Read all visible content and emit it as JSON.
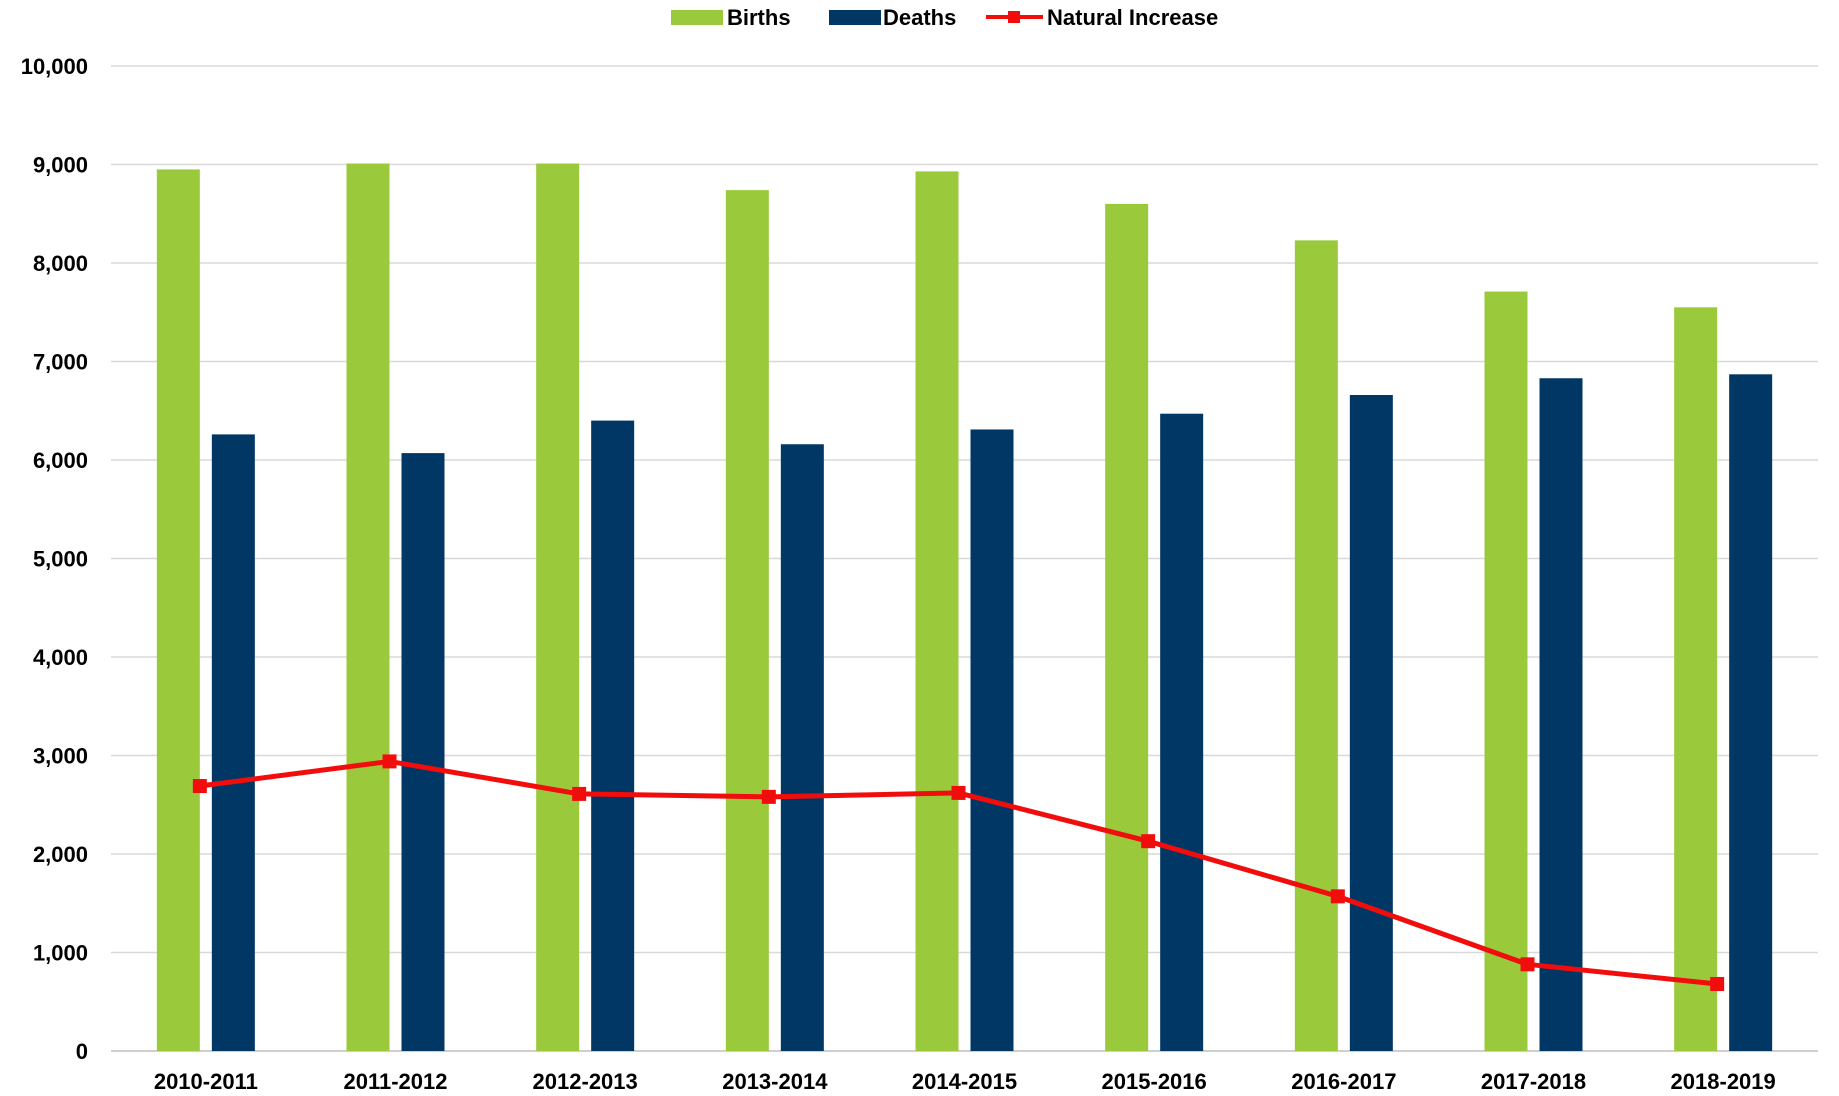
{
  "chart_data": {
    "type": "bar",
    "title": "",
    "xlabel": "",
    "ylabel": "",
    "ylim": [
      0,
      10000
    ],
    "yticks": [
      0,
      1000,
      2000,
      3000,
      4000,
      5000,
      6000,
      7000,
      8000,
      9000,
      10000
    ],
    "ytick_labels": [
      "0",
      "1,000",
      "2,000",
      "3,000",
      "4,000",
      "5,000",
      "6,000",
      "7,000",
      "8,000",
      "9,000",
      "10,000"
    ],
    "grid": "horizontal",
    "legend_position": "top-center",
    "categories": [
      "2010-2011",
      "2011-2012",
      "2012-2013",
      "2013-2014",
      "2014-2015",
      "2015-2016",
      "2016-2017",
      "2017-2018",
      "2018-2019"
    ],
    "series": [
      {
        "name": "Births",
        "type": "bar",
        "color": "#9ACA3C",
        "values": [
          8950,
          9010,
          9010,
          8740,
          8930,
          8600,
          8230,
          7710,
          7550
        ]
      },
      {
        "name": "Deaths",
        "type": "bar",
        "color": "#003764",
        "values": [
          6260,
          6070,
          6400,
          6160,
          6310,
          6470,
          6660,
          6830,
          6870
        ]
      },
      {
        "name": "Natural Increase",
        "type": "line",
        "marker": "square",
        "color": "#F20D0D",
        "values": [
          2690,
          2940,
          2610,
          2580,
          2620,
          2130,
          1570,
          880,
          680
        ]
      }
    ]
  }
}
